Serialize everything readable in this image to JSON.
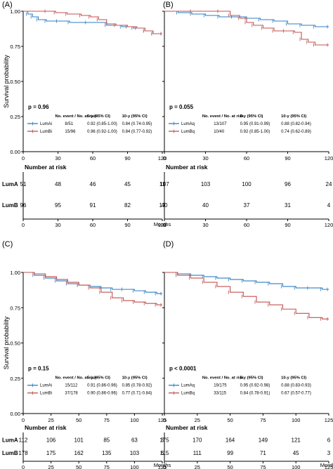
{
  "colors": {
    "blue": "#2e7ec4",
    "red": "#c0504d",
    "axis": "#000000"
  },
  "text": {
    "months": "Months",
    "survival_probability": "Survival probability",
    "number_at_risk": "Number at risk"
  },
  "chart_data": [
    {
      "type": "line",
      "panel_label": "(A)",
      "ylabel": "Survival probability",
      "xlim": [
        0,
        120
      ],
      "ylim": [
        0,
        1
      ],
      "x_ticks": [
        "0",
        "30",
        "60",
        "90",
        "120"
      ],
      "y_ticks": [
        "0.00",
        "0.25",
        "0.50",
        "0.75",
        "1.00"
      ],
      "p_value": "p = 0.96",
      "legend_headers": [
        "No. event / No. at risk",
        "5-y (95% CI)",
        "10-y (95% CI)"
      ],
      "series": [
        {
          "name": "LumAi",
          "color": "#2e7ec4",
          "event": "8/51",
          "y5": "0.92 (0.85-1.00)",
          "y10": "0.84 (0.74-0.95)",
          "x": [
            0,
            4,
            8,
            13,
            20,
            30,
            40,
            55,
            72,
            85,
            95,
            105,
            112,
            120
          ],
          "y": [
            1.0,
            0.98,
            0.96,
            0.94,
            0.93,
            0.93,
            0.92,
            0.92,
            0.9,
            0.89,
            0.88,
            0.86,
            0.84,
            0.84
          ]
        },
        {
          "name": "LumBi",
          "color": "#c0504d",
          "event": "15/96",
          "y5": "0.96 (0.92-1.00)",
          "y10": "0.84 (0.77-0.92)",
          "x": [
            0,
            20,
            28,
            38,
            50,
            58,
            65,
            72,
            80,
            90,
            98,
            105,
            112,
            120
          ],
          "y": [
            1.0,
            1.0,
            0.99,
            0.98,
            0.97,
            0.96,
            0.94,
            0.91,
            0.9,
            0.89,
            0.88,
            0.86,
            0.84,
            0.84
          ]
        }
      ],
      "risk_table": {
        "title": "Number at risk",
        "x_ticks": [
          "0",
          "30",
          "60",
          "90",
          "120"
        ],
        "xlabel": "Months",
        "rows": [
          {
            "label": "LumA",
            "values": [
              "51",
              "48",
              "46",
              "45",
              "11"
            ]
          },
          {
            "label": "LumB",
            "values": [
              "96",
              "95",
              "91",
              "82",
              "17"
            ]
          }
        ]
      }
    },
    {
      "type": "line",
      "panel_label": "(B)",
      "ylabel": "",
      "xlim": [
        0,
        120
      ],
      "ylim": [
        0,
        1
      ],
      "x_ticks": [
        "0",
        "30",
        "60",
        "90",
        "120"
      ],
      "y_ticks": [
        "0.00",
        "0.25",
        "0.50",
        "0.75",
        "1.00"
      ],
      "p_value": "p = 0.055",
      "legend_headers": [
        "No. event / No. at risk",
        "5-y (95% CI)",
        "10-y (95% CI)"
      ],
      "series": [
        {
          "name": "LumAq",
          "color": "#2e7ec4",
          "event": "13/107",
          "y5": "0.95 (0.91-0.99)",
          "y10": "0.88 (0.82-0.94)",
          "x": [
            0,
            10,
            20,
            30,
            40,
            50,
            60,
            70,
            80,
            90,
            100,
            110,
            120
          ],
          "y": [
            1.0,
            0.99,
            0.98,
            0.97,
            0.96,
            0.96,
            0.95,
            0.94,
            0.93,
            0.91,
            0.9,
            0.89,
            0.89
          ]
        },
        {
          "name": "LumBq",
          "color": "#c0504d",
          "event": "10/40",
          "y5": "0.92 (0.85-1.00)",
          "y10": "0.74 (0.62-0.89)",
          "x": [
            0,
            20,
            40,
            48,
            55,
            60,
            65,
            72,
            80,
            88,
            95,
            100,
            105,
            110,
            120
          ],
          "y": [
            1.0,
            1.0,
            1.0,
            0.97,
            0.95,
            0.92,
            0.9,
            0.88,
            0.86,
            0.86,
            0.85,
            0.8,
            0.78,
            0.76,
            0.76
          ]
        }
      ],
      "risk_table": {
        "title": "Number at risk",
        "x_ticks": [
          "0",
          "30",
          "60",
          "90",
          "120"
        ],
        "xlabel": "",
        "rows": [
          {
            "label": "",
            "values": [
              "107",
              "103",
              "100",
              "96",
              "24"
            ]
          },
          {
            "label": "",
            "values": [
              "40",
              "40",
              "37",
              "31",
              "4"
            ]
          }
        ]
      }
    },
    {
      "type": "line",
      "panel_label": "(C)",
      "ylabel": "Survival probability",
      "xlim": [
        0,
        125
      ],
      "ylim": [
        0,
        1
      ],
      "x_ticks": [
        "0",
        "25",
        "50",
        "75",
        "100",
        "125"
      ],
      "y_ticks": [
        "0.00",
        "0.25",
        "0.50",
        "0.75",
        "1.00"
      ],
      "p_value": "p = 0.15",
      "legend_headers": [
        "No. event / No. at risk",
        "5-y (95% CI)",
        "10-y (95% CI)"
      ],
      "series": [
        {
          "name": "LumAi",
          "color": "#2e7ec4",
          "event": "15/112",
          "y5": "0.91 (0.86-0.96)",
          "y10": "0.85 (0.78-0.92)",
          "x": [
            0,
            10,
            20,
            30,
            40,
            50,
            60,
            70,
            80,
            90,
            100,
            110,
            120,
            125
          ],
          "y": [
            1.0,
            0.98,
            0.96,
            0.94,
            0.92,
            0.91,
            0.9,
            0.89,
            0.88,
            0.88,
            0.87,
            0.86,
            0.85,
            0.85
          ]
        },
        {
          "name": "LumBi",
          "color": "#c0504d",
          "event": "37/178",
          "y5": "0.90 (0.86-0.96)",
          "y10": "0.77 (0.71-0.84)",
          "x": [
            0,
            10,
            20,
            30,
            40,
            50,
            60,
            70,
            80,
            90,
            100,
            110,
            120,
            125
          ],
          "y": [
            1.0,
            0.99,
            0.97,
            0.95,
            0.93,
            0.91,
            0.89,
            0.86,
            0.82,
            0.8,
            0.79,
            0.78,
            0.77,
            0.77
          ]
        }
      ],
      "risk_table": {
        "title": "Number at risk",
        "x_ticks": [
          "0",
          "25",
          "50",
          "75",
          "100",
          "125"
        ],
        "xlabel": "Months",
        "rows": [
          {
            "label": "LumA",
            "values": [
              "112",
              "106",
              "101",
              "85",
              "63",
              "3"
            ]
          },
          {
            "label": "LumB",
            "values": [
              "178",
              "175",
              "162",
              "135",
              "103",
              "6"
            ]
          }
        ]
      }
    },
    {
      "type": "line",
      "panel_label": "(D)",
      "ylabel": "",
      "xlim": [
        0,
        125
      ],
      "ylim": [
        0,
        1
      ],
      "x_ticks": [
        "0",
        "25",
        "50",
        "75",
        "100",
        "125"
      ],
      "y_ticks": [
        "0.00",
        "0.25",
        "0.50",
        "0.75",
        "1.00"
      ],
      "p_value": "p < 0.0001",
      "legend_headers": [
        "No. event / No. at risk",
        "5-y (95% CI)",
        "10-y (95% CI)"
      ],
      "series": [
        {
          "name": "LumAq",
          "color": "#2e7ec4",
          "event": "19/175",
          "y5": "0.95 (0.92-0.98)",
          "y10": "0.88 (0.83-0.93)",
          "x": [
            0,
            10,
            20,
            30,
            40,
            50,
            60,
            70,
            80,
            90,
            100,
            110,
            120,
            125
          ],
          "y": [
            1.0,
            0.99,
            0.98,
            0.97,
            0.96,
            0.95,
            0.94,
            0.93,
            0.92,
            0.9,
            0.89,
            0.89,
            0.88,
            0.88
          ]
        },
        {
          "name": "LumBq",
          "color": "#c0504d",
          "event": "33/115",
          "y5": "0.84 (0.78-0.91)",
          "y10": "0.67 (0.57-0.77)",
          "x": [
            0,
            10,
            20,
            30,
            40,
            50,
            60,
            70,
            80,
            90,
            100,
            110,
            120,
            125
          ],
          "y": [
            1.0,
            0.98,
            0.96,
            0.93,
            0.9,
            0.86,
            0.83,
            0.79,
            0.77,
            0.74,
            0.71,
            0.68,
            0.67,
            0.67
          ]
        }
      ],
      "risk_table": {
        "title": "Number at risk",
        "x_ticks": [
          "0",
          "25",
          "50",
          "75",
          "100",
          "125"
        ],
        "xlabel": "Months",
        "rows": [
          {
            "label": "",
            "values": [
              "175",
              "170",
              "164",
              "149",
              "121",
              "6"
            ]
          },
          {
            "label": "",
            "values": [
              "115",
              "111",
              "99",
              "71",
              "45",
              "3"
            ]
          }
        ]
      }
    }
  ]
}
